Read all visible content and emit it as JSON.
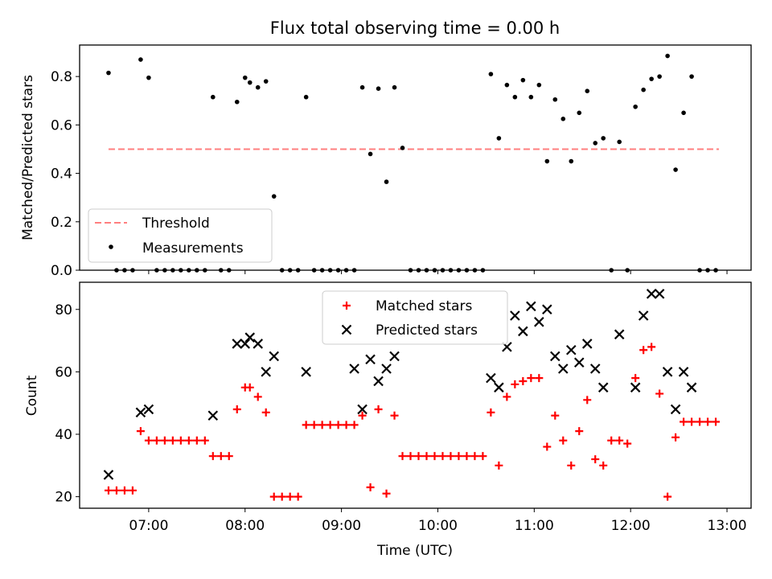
{
  "chart_data": [
    {
      "type": "scatter",
      "title": "Flux total observing time = 0.00 h",
      "xlabel": "",
      "ylabel": "Matched/Predicted stars",
      "ylim": [
        0,
        0.93
      ],
      "yticks": [
        0.0,
        0.2,
        0.4,
        0.6,
        0.8
      ],
      "ytick_labels": [
        "0.0",
        "0.2",
        "0.4",
        "0.6",
        "0.8"
      ],
      "legend_position": "lower-left",
      "threshold": {
        "name": "Threshold",
        "value": 0.5,
        "x_range": [
          "06:35",
          "12:55"
        ],
        "color": "#ff7f7f",
        "style": "dashed"
      },
      "series": [
        {
          "name": "Measurements",
          "color": "#000000",
          "marker": "dot",
          "x": [
            "06:35",
            "06:40",
            "06:45",
            "06:50",
            "06:55",
            "07:00",
            "07:05",
            "07:10",
            "07:15",
            "07:20",
            "07:25",
            "07:30",
            "07:35",
            "07:40",
            "07:45",
            "07:50",
            "07:55",
            "08:00",
            "08:03",
            "08:08",
            "08:13",
            "08:18",
            "08:23",
            "08:28",
            "08:33",
            "08:38",
            "08:43",
            "08:48",
            "08:53",
            "08:58",
            "09:03",
            "09:08",
            "09:13",
            "09:18",
            "09:23",
            "09:28",
            "09:33",
            "09:38",
            "09:43",
            "09:48",
            "09:53",
            "09:58",
            "10:03",
            "10:08",
            "10:13",
            "10:18",
            "10:23",
            "10:28",
            "10:33",
            "10:38",
            "10:43",
            "10:48",
            "10:53",
            "10:58",
            "11:03",
            "11:08",
            "11:13",
            "11:18",
            "11:23",
            "11:28",
            "11:33",
            "11:38",
            "11:43",
            "11:48",
            "11:53",
            "11:58",
            "12:03",
            "12:08",
            "12:13",
            "12:18",
            "12:23",
            "12:28",
            "12:33",
            "12:38",
            "12:43",
            "12:48",
            "12:53"
          ],
          "y": [
            0.815,
            0.0,
            0.0,
            0.0,
            0.87,
            0.795,
            0.0,
            0.0,
            0.0,
            0.0,
            0.0,
            0.0,
            0.0,
            0.715,
            0.0,
            0.0,
            0.695,
            0.795,
            0.775,
            0.755,
            0.78,
            0.305,
            0.0,
            0.0,
            0.0,
            0.715,
            0.0,
            0.0,
            0.0,
            0.0,
            0.0,
            0.0,
            0.755,
            0.48,
            0.75,
            0.365,
            0.755,
            0.505,
            0.0,
            0.0,
            0.0,
            0.0,
            0.0,
            0.0,
            0.0,
            0.0,
            0.0,
            0.0,
            0.81,
            0.545,
            0.765,
            0.715,
            0.785,
            0.715,
            0.765,
            0.45,
            0.705,
            0.625,
            0.45,
            0.65,
            0.74,
            0.525,
            0.545,
            0.0,
            0.53,
            0.0,
            0.675,
            0.745,
            0.79,
            0.8,
            0.885,
            0.415,
            0.65,
            0.8,
            0.0,
            0.0,
            0.0
          ]
        }
      ]
    },
    {
      "type": "scatter",
      "title": "",
      "xlabel": "Time (UTC)",
      "ylabel": "Count",
      "ylim": [
        16.3,
        88.7
      ],
      "yticks": [
        20,
        40,
        60,
        80
      ],
      "ytick_labels": [
        "20",
        "40",
        "60",
        "80"
      ],
      "xticks": [
        "07:00",
        "08:00",
        "09:00",
        "10:00",
        "11:00",
        "12:00",
        "13:00"
      ],
      "xlim": [
        "06:17",
        "13:15"
      ],
      "legend_position": "upper-center",
      "series": [
        {
          "name": "Matched stars",
          "color": "#ff0000",
          "marker": "+",
          "x": [
            "06:35",
            "06:40",
            "06:45",
            "06:50",
            "06:55",
            "07:00",
            "07:05",
            "07:10",
            "07:15",
            "07:20",
            "07:25",
            "07:30",
            "07:35",
            "07:40",
            "07:45",
            "07:50",
            "07:55",
            "08:00",
            "08:03",
            "08:08",
            "08:13",
            "08:18",
            "08:23",
            "08:28",
            "08:33",
            "08:38",
            "08:43",
            "08:48",
            "08:53",
            "08:58",
            "09:03",
            "09:08",
            "09:13",
            "09:18",
            "09:23",
            "09:28",
            "09:33",
            "09:38",
            "09:43",
            "09:48",
            "09:53",
            "09:58",
            "10:03",
            "10:08",
            "10:13",
            "10:18",
            "10:23",
            "10:28",
            "10:33",
            "10:38",
            "10:43",
            "10:48",
            "10:53",
            "10:58",
            "11:03",
            "11:08",
            "11:13",
            "11:18",
            "11:23",
            "11:28",
            "11:33",
            "11:38",
            "11:43",
            "11:48",
            "11:53",
            "11:58",
            "12:03",
            "12:08",
            "12:13",
            "12:18",
            "12:23",
            "12:28",
            "12:33",
            "12:38",
            "12:43",
            "12:48",
            "12:53"
          ],
          "y": [
            22,
            22,
            22,
            22,
            41,
            38,
            38,
            38,
            38,
            38,
            38,
            38,
            38,
            33,
            33,
            33,
            48,
            55,
            55,
            52,
            47,
            20,
            20,
            20,
            20,
            43,
            43,
            43,
            43,
            43,
            43,
            43,
            46,
            23,
            48,
            21,
            46,
            33,
            33,
            33,
            33,
            33,
            33,
            33,
            33,
            33,
            33,
            33,
            47,
            30,
            52,
            56,
            57,
            58,
            58,
            36,
            46,
            38,
            30,
            41,
            51,
            32,
            30,
            38,
            38,
            37,
            58,
            67,
            68,
            53,
            20,
            39,
            44,
            44,
            44,
            44,
            44
          ]
        },
        {
          "name": "Predicted stars",
          "color": "#000000",
          "marker": "x",
          "x": [
            "06:35",
            "06:55",
            "07:00",
            "07:40",
            "07:55",
            "08:00",
            "08:03",
            "08:08",
            "08:13",
            "08:18",
            "08:38",
            "09:08",
            "09:13",
            "09:18",
            "09:23",
            "09:28",
            "09:33",
            "10:33",
            "10:38",
            "10:43",
            "10:48",
            "10:53",
            "10:58",
            "11:03",
            "11:08",
            "11:13",
            "11:18",
            "11:23",
            "11:28",
            "11:33",
            "11:38",
            "11:43",
            "11:53",
            "12:03",
            "12:08",
            "12:13",
            "12:18",
            "12:23",
            "12:28",
            "12:33",
            "12:38"
          ],
          "y": [
            27,
            47,
            48,
            46,
            69,
            69,
            71,
            69,
            60,
            65,
            60,
            61,
            48,
            64,
            57,
            61,
            65,
            58,
            55,
            68,
            78,
            73,
            81,
            76,
            80,
            65,
            61,
            67,
            63,
            69,
            61,
            55,
            72,
            55,
            78,
            85,
            85,
            60,
            48,
            60,
            55
          ]
        }
      ]
    }
  ]
}
